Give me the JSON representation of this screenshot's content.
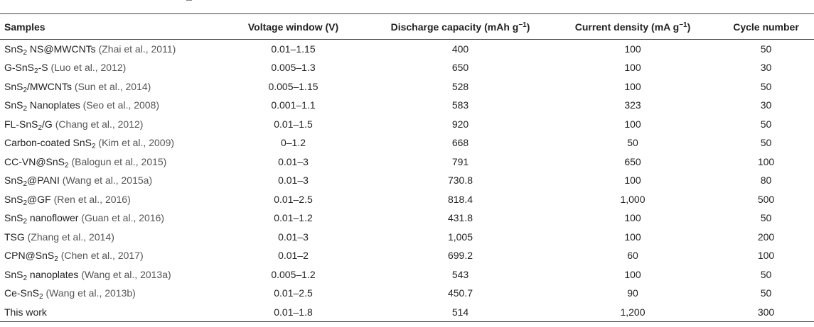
{
  "headers": {
    "samples": "Samples",
    "voltage": "Voltage window (V)",
    "capacity": "Discharge capacity (mAh g",
    "capacity_sup": "−1",
    "capacity_close": ")",
    "current": "Current density (mA g",
    "current_sup": "−1",
    "current_close": ")",
    "cycle": "Cycle number"
  },
  "rows": [
    {
      "pre": "SnS",
      "sub": "2",
      "post": " NS@MWCNTs ",
      "ref": "(Zhai et al., 2011)",
      "voltage": "0.01–1.15",
      "capacity": "400",
      "current": "100",
      "cycle": "50"
    },
    {
      "pre": "G-SnS",
      "sub": "2",
      "post": "-S ",
      "ref": "(Luo et al., 2012)",
      "voltage": "0.005–1.3",
      "capacity": "650",
      "current": "100",
      "cycle": "30"
    },
    {
      "pre": "SnS",
      "sub": "2",
      "post": "/MWCNTs ",
      "ref": "(Sun et al., 2014)",
      "voltage": "0.005–1.15",
      "capacity": "528",
      "current": "100",
      "cycle": "50"
    },
    {
      "pre": "SnS",
      "sub": "2",
      "post": " Nanoplates ",
      "ref": "(Seo et al., 2008)",
      "voltage": "0.001–1.1",
      "capacity": "583",
      "current": "323",
      "cycle": "30"
    },
    {
      "pre": "FL-SnS",
      "sub": "2",
      "post": "/G ",
      "ref": "(Chang et al., 2012)",
      "voltage": "0.01–1.5",
      "capacity": "920",
      "current": "100",
      "cycle": "50"
    },
    {
      "pre": "Carbon-coated SnS",
      "sub": "2",
      "post": " ",
      "ref": "(Kim et al., 2009)",
      "voltage": "0–1.2",
      "capacity": "668",
      "current": "50",
      "cycle": "50"
    },
    {
      "pre": "CC-VN@SnS",
      "sub": "2",
      "post": " ",
      "ref": "(Balogun et al., 2015)",
      "voltage": "0.01–3",
      "capacity": "791",
      "current": "650",
      "cycle": "100"
    },
    {
      "pre": "SnS",
      "sub": "2",
      "post": "@PANI ",
      "ref": "(Wang et al., 2015a)",
      "voltage": "0.01–3",
      "capacity": "730.8",
      "current": "100",
      "cycle": "80"
    },
    {
      "pre": "SnS",
      "sub": "2",
      "post": "@GF ",
      "ref": "(Ren et al., 2016)",
      "voltage": "0.01–2.5",
      "capacity": "818.4",
      "current": "1,000",
      "cycle": "500"
    },
    {
      "pre": "SnS",
      "sub": "2",
      "post": " nanoflower ",
      "ref": "(Guan et al., 2016)",
      "voltage": "0.01–1.2",
      "capacity": "431.8",
      "current": "100",
      "cycle": "50"
    },
    {
      "pre": "TSG ",
      "sub": "",
      "post": "",
      "ref": "(Zhang et al., 2014)",
      "voltage": "0.01–3",
      "capacity": "1,005",
      "current": "100",
      "cycle": "200"
    },
    {
      "pre": "CPN@SnS",
      "sub": "2",
      "post": " ",
      "ref": "(Chen et al., 2017)",
      "voltage": "0.01–2",
      "capacity": "699.2",
      "current": "60",
      "cycle": "100"
    },
    {
      "pre": "SnS",
      "sub": "2",
      "post": " nanoplates ",
      "ref": "(Wang et al., 2013a)",
      "voltage": "0.005–1.2",
      "capacity": "543",
      "current": "100",
      "cycle": "50"
    },
    {
      "pre": "Ce-SnS",
      "sub": "2",
      "post": " ",
      "ref": "(Wang et al., 2013b)",
      "voltage": "0.01–2.5",
      "capacity": "450.7",
      "current": "90",
      "cycle": "50"
    },
    {
      "pre": "This work",
      "sub": "",
      "post": "",
      "ref": "",
      "voltage": "0.01–1.8",
      "capacity": "514",
      "current": "1,200",
      "cycle": "300"
    }
  ]
}
